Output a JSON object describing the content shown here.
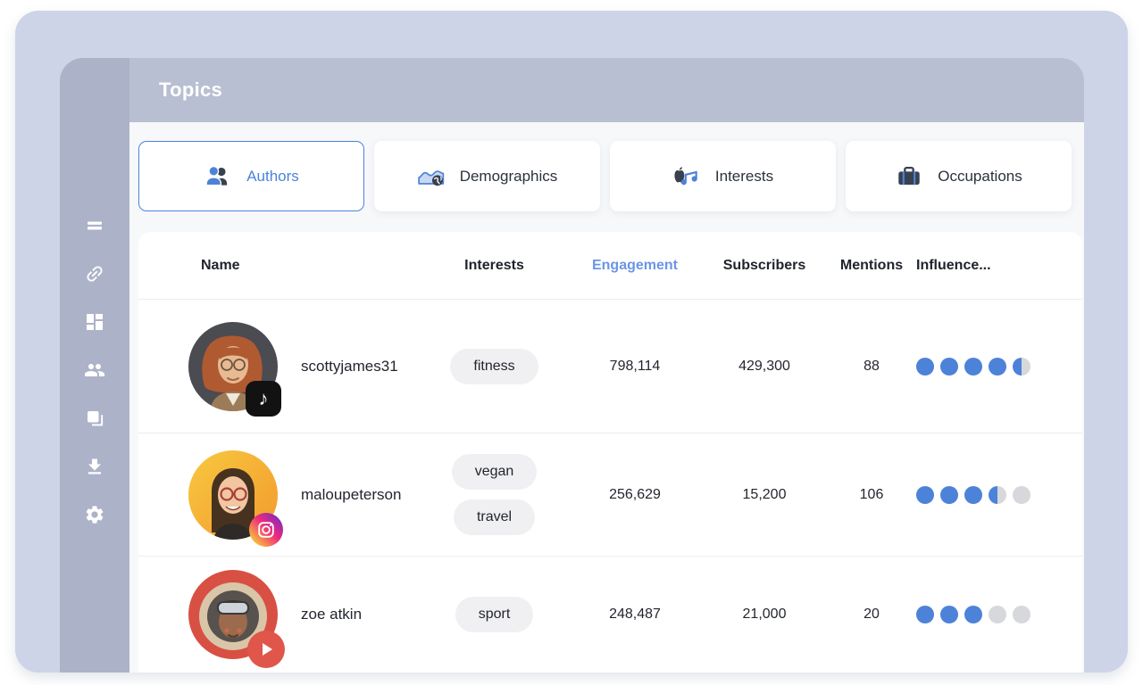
{
  "app": {
    "title": "Topics"
  },
  "colors": {
    "accent_blue": "#4d82d9",
    "engagement_header_blue": "#6d95e6",
    "frame_bg": "#cdd4e8",
    "sidebar_bg": "#acb3c8",
    "headerbar_bg": "#b9bfd2",
    "dot_inactive": "#d7d8db",
    "tiktok_badge": "#121212",
    "youtube_badge": "#e0564a"
  },
  "sidebar": {
    "items": [
      {
        "icon": "menu-icon"
      },
      {
        "icon": "link-icon"
      },
      {
        "icon": "dashboard-icon"
      },
      {
        "icon": "people-icon"
      },
      {
        "icon": "layers-icon"
      },
      {
        "icon": "download-icon"
      },
      {
        "icon": "settings-icon"
      }
    ]
  },
  "tabs": [
    {
      "label": "Authors",
      "icon": "authors-icon",
      "active": true
    },
    {
      "label": "Demographics",
      "icon": "demographics-icon",
      "active": false
    },
    {
      "label": "Interests",
      "icon": "interests-icon",
      "active": false
    },
    {
      "label": "Occupations",
      "icon": "occupations-icon",
      "active": false
    }
  ],
  "table": {
    "headers": {
      "name": "Name",
      "interests": "Interests",
      "engagement": "Engagement",
      "subscribers": "Subscribers",
      "mentions": "Mentions",
      "influence": "Influence..."
    },
    "sorted_by": "Engagement",
    "influence_max": 5,
    "rows": [
      {
        "name": "scottyjames31",
        "platform": "tiktok",
        "interests": [
          "fitness"
        ],
        "engagement": "798,114",
        "subscribers": "429,300",
        "mentions": "88",
        "influence": 4.5
      },
      {
        "name": "maloupeterson",
        "platform": "instagram",
        "interests": [
          "vegan",
          "travel"
        ],
        "engagement": "256,629",
        "subscribers": "15,200",
        "mentions": "106",
        "influence": 3.5
      },
      {
        "name": "zoe atkin",
        "platform": "youtube",
        "interests": [
          "sport"
        ],
        "engagement": "248,487",
        "subscribers": "21,000",
        "mentions": "20",
        "influence": 3
      }
    ]
  },
  "icons": {
    "tiktok_note": "♪"
  }
}
